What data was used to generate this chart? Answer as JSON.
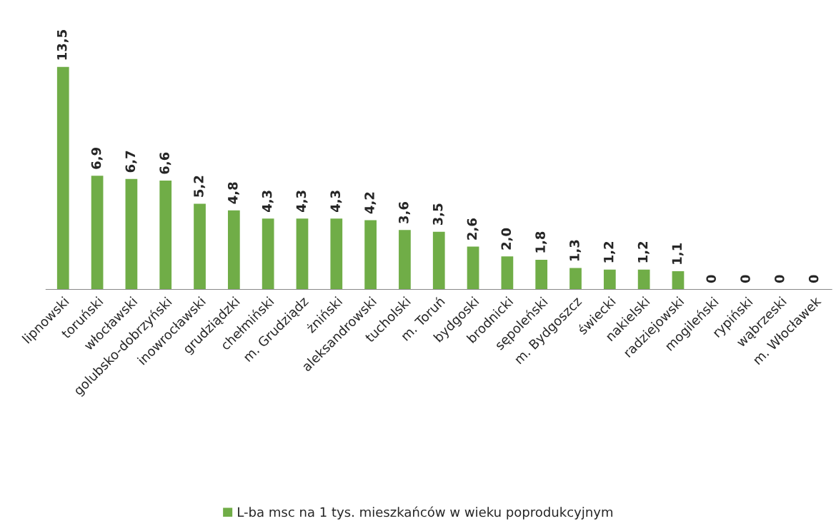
{
  "chart_data": {
    "type": "bar",
    "categories": [
      "lipnowski",
      "toruński",
      "włocławski",
      "golubsko-dobrzyński",
      "inowrocławski",
      "grudziądzki",
      "chełmiński",
      "m. Grudziądz",
      "żniński",
      "aleksandrowski",
      "tucholski",
      "m. Toruń",
      "bydgoski",
      "brodnicki",
      "sępoleński",
      "m. Bydgoszcz",
      "świecki",
      "nakielski",
      "radziejowski",
      "mogileński",
      "rypiński",
      "wąbrzeski",
      "m. Włocławek"
    ],
    "series": [
      {
        "name": "L-ba msc na 1 tys. mieszkańców w wieku poprodukcyjnym",
        "color": "#70ad47",
        "values": [
          13.5,
          6.9,
          6.7,
          6.6,
          5.2,
          4.8,
          4.3,
          4.3,
          4.3,
          4.2,
          3.6,
          3.5,
          2.6,
          2.0,
          1.8,
          1.3,
          1.2,
          1.2,
          1.1,
          0,
          0,
          0,
          0
        ],
        "value_labels": [
          "13,5",
          "6,9",
          "6,7",
          "6,6",
          "5,2",
          "4,8",
          "4,3",
          "4,3",
          "4,3",
          "4,2",
          "3,6",
          "3,5",
          "2,6",
          "2,0",
          "1,8",
          "1,3",
          "1,2",
          "1,2",
          "1,1",
          "0",
          "0",
          "0",
          "0"
        ]
      }
    ],
    "legend": "bottom",
    "grid": false
  }
}
